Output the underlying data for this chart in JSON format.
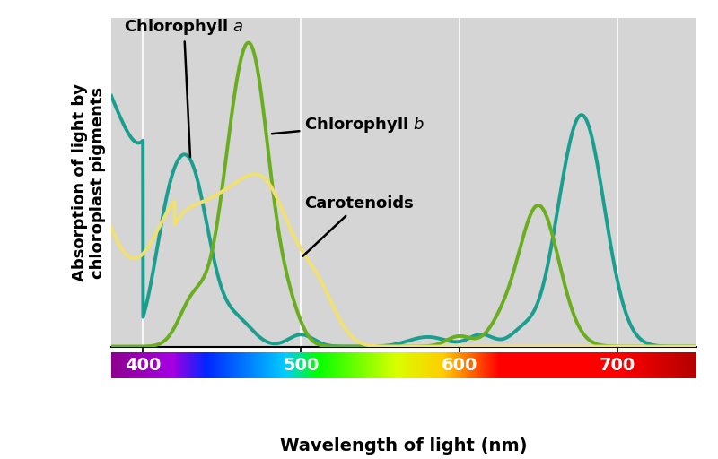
{
  "xlabel": "Wavelength of light (nm)",
  "ylabel": "Absorption of light by\nchloroplast pigments",
  "xmin": 380,
  "xmax": 750,
  "background_color": "#d5d5d5",
  "fig_background": "#ffffff",
  "curve_colors": {
    "chl_a": "#1a9e8f",
    "chl_b": "#6aad1e",
    "carotenoids": "#f0e070"
  },
  "xticks": [
    400,
    500,
    600,
    700
  ],
  "lw": 2.8
}
